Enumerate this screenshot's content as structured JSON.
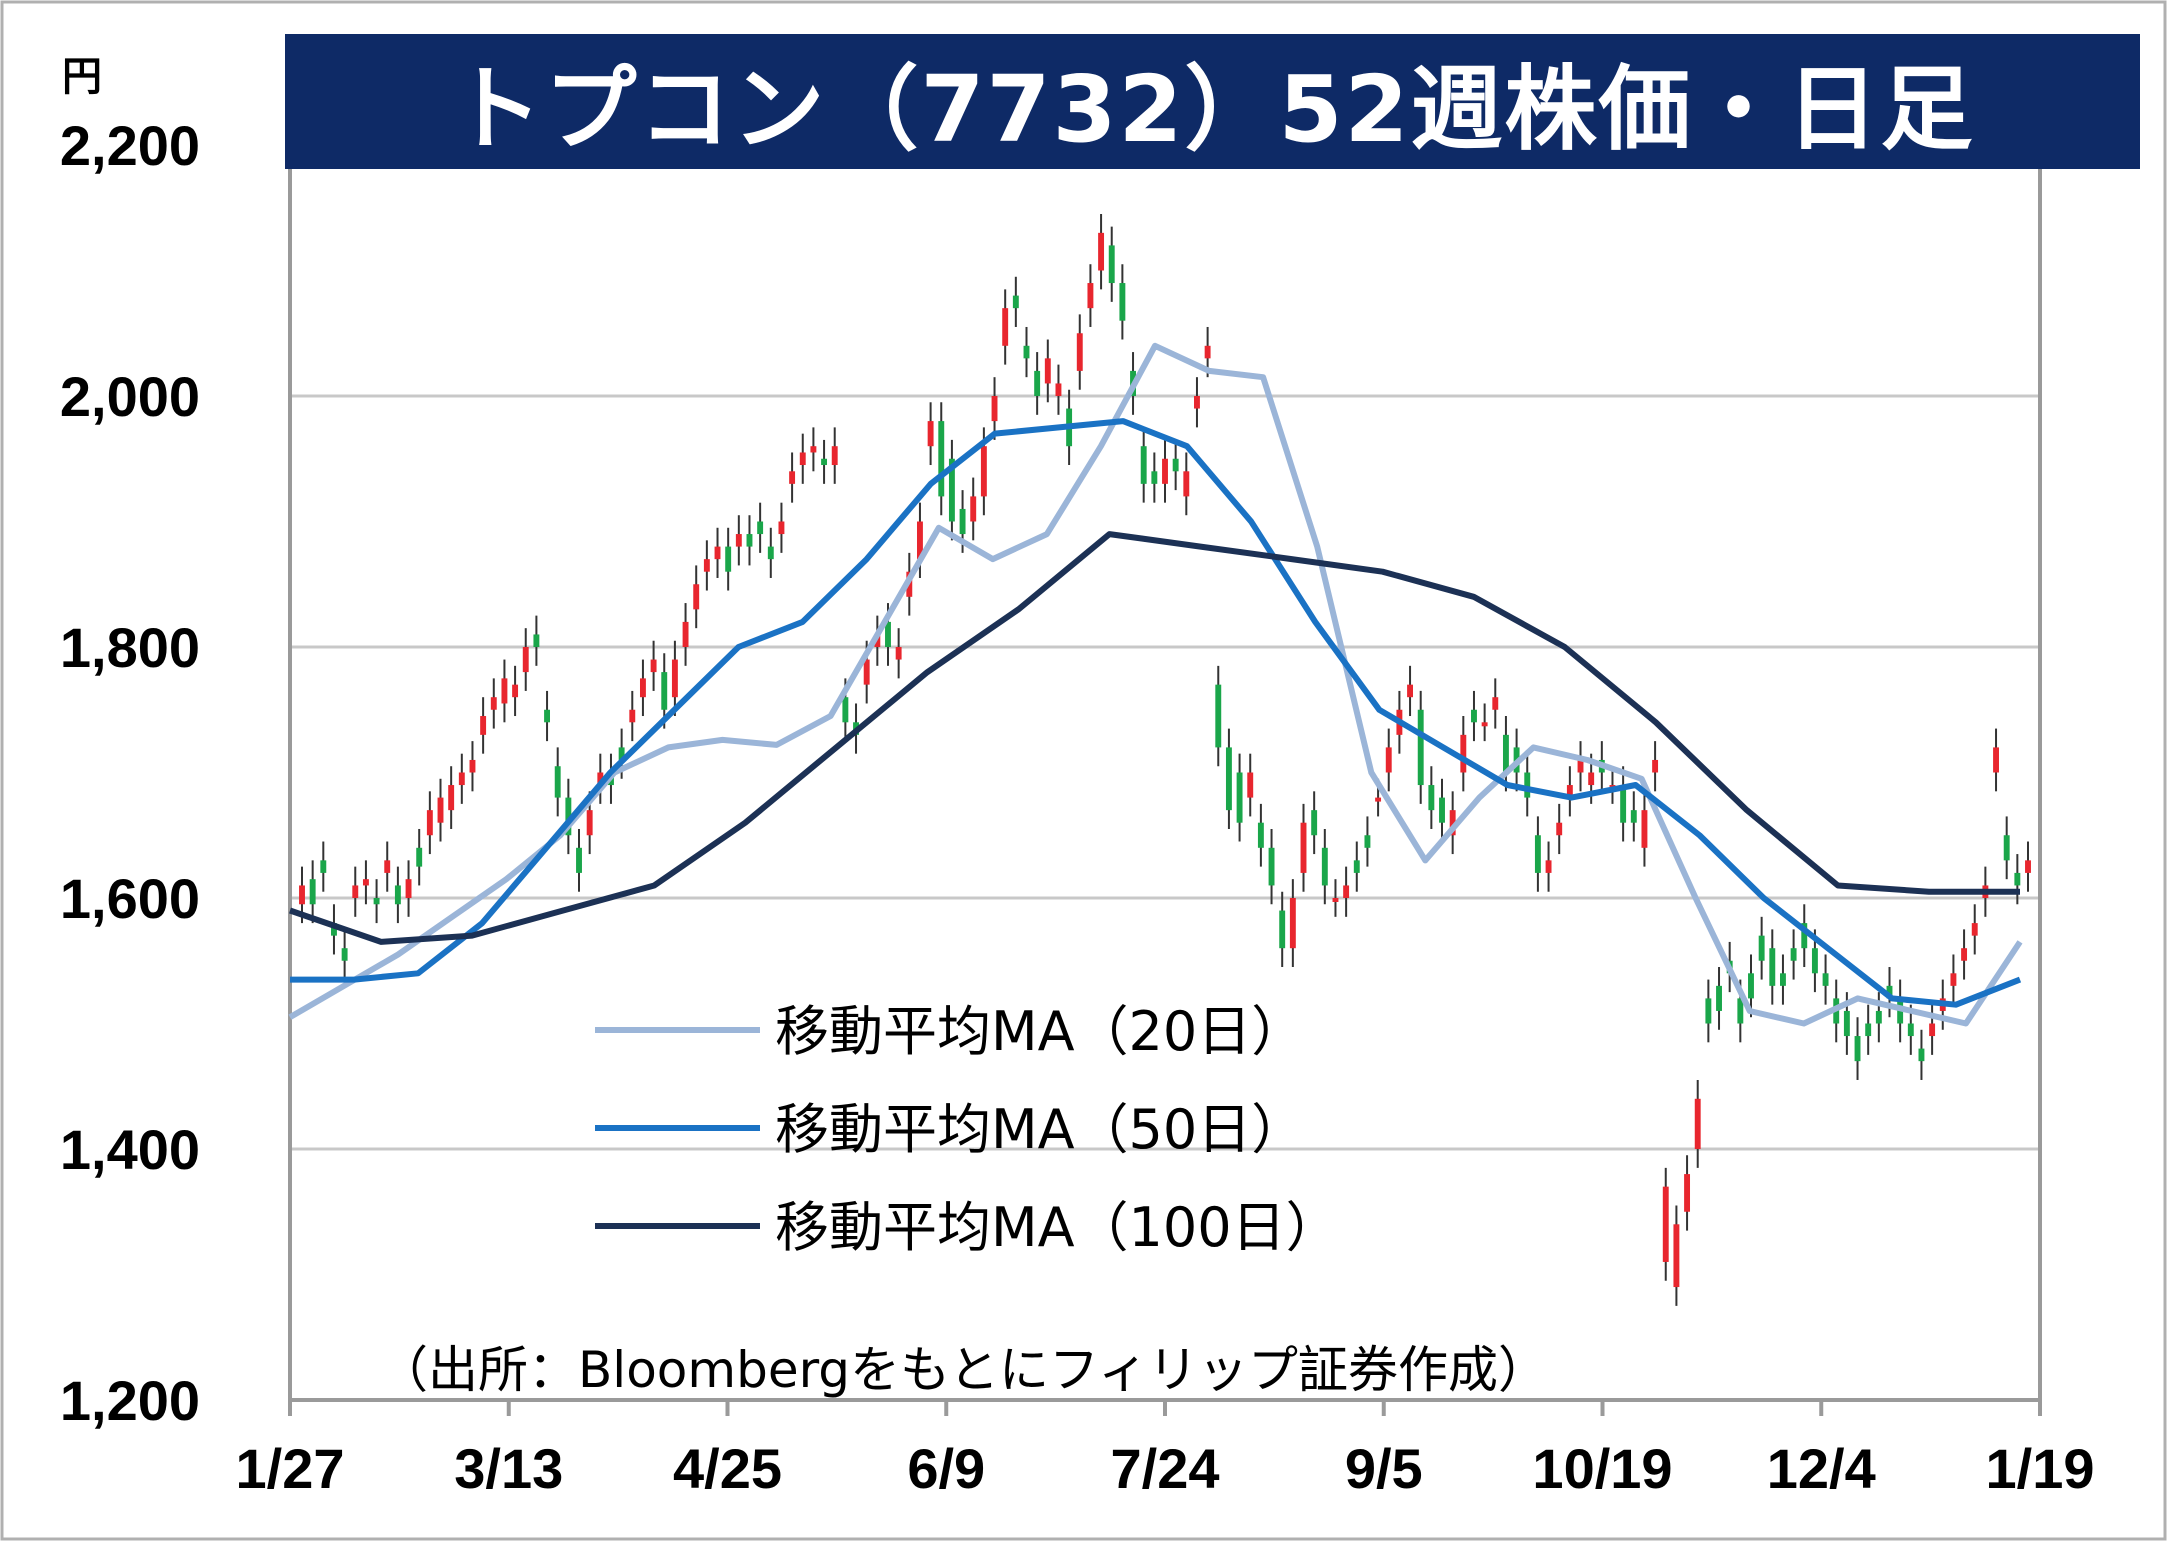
{
  "title": "トプコン（7732）52週株価・日足",
  "unit_label": "円",
  "source": "（出所：Bloombergをもとにフィリップ証券作成）",
  "legend": [
    "移動平均MA（20日）",
    "移動平均MA（50日）",
    "移動平均MA（100日）"
  ],
  "colors": {
    "title_bg": "#0e2a66",
    "up_candle": "#e8262e",
    "down_candle": "#1aa64a",
    "ma20": "#9bb5d8",
    "ma50": "#1a72c4",
    "ma100": "#1c3155",
    "grid": "#c8c8c8",
    "axis": "#9a9a9a"
  },
  "chart_data": {
    "type": "line",
    "title": "トプコン（7732）52週株価・日足",
    "xlabel": "",
    "ylabel": "円",
    "ylim": [
      1200,
      2200
    ],
    "yticks": [
      "1,200",
      "1,400",
      "1,600",
      "1,800",
      "2,000",
      "2,200"
    ],
    "ytick_values": [
      1200,
      1400,
      1600,
      1800,
      2000,
      2200
    ],
    "xticks": [
      "1/27",
      "3/13",
      "4/25",
      "6/9",
      "7/24",
      "9/5",
      "10/19",
      "12/4",
      "1/19"
    ],
    "grid": true,
    "legend_position": "lower-left",
    "candles": [
      [
        1595,
        1610
      ],
      [
        1615,
        1595
      ],
      [
        1630,
        1620
      ],
      [
        1580,
        1570
      ],
      [
        1560,
        1550
      ],
      [
        1600,
        1610
      ],
      [
        1610,
        1615
      ],
      [
        1600,
        1595
      ],
      [
        1620,
        1630
      ],
      [
        1610,
        1595
      ],
      [
        1600,
        1615
      ],
      [
        1640,
        1625
      ],
      [
        1650,
        1670
      ],
      [
        1660,
        1680
      ],
      [
        1670,
        1690
      ],
      [
        1690,
        1700
      ],
      [
        1700,
        1710
      ],
      [
        1730,
        1745
      ],
      [
        1750,
        1760
      ],
      [
        1755,
        1775
      ],
      [
        1760,
        1770
      ],
      [
        1780,
        1800
      ],
      [
        1810,
        1800
      ],
      [
        1750,
        1740
      ],
      [
        1705,
        1680
      ],
      [
        1680,
        1650
      ],
      [
        1640,
        1620
      ],
      [
        1650,
        1670
      ],
      [
        1690,
        1700
      ],
      [
        1700,
        1690
      ],
      [
        1720,
        1710
      ],
      [
        1740,
        1750
      ],
      [
        1760,
        1775
      ],
      [
        1780,
        1790
      ],
      [
        1780,
        1750
      ],
      [
        1760,
        1790
      ],
      [
        1800,
        1820
      ],
      [
        1830,
        1850
      ],
      [
        1860,
        1870
      ],
      [
        1870,
        1880
      ],
      [
        1880,
        1860
      ],
      [
        1880,
        1890
      ],
      [
        1890,
        1880
      ],
      [
        1900,
        1890
      ],
      [
        1880,
        1870
      ],
      [
        1890,
        1900
      ],
      [
        1930,
        1940
      ],
      [
        1945,
        1955
      ],
      [
        1955,
        1960
      ],
      [
        1950,
        1945
      ],
      [
        1945,
        1960
      ],
      [
        1760,
        1740
      ],
      [
        1740,
        1730
      ],
      [
        1770,
        1790
      ],
      [
        1800,
        1810
      ],
      [
        1820,
        1800
      ],
      [
        1790,
        1800
      ],
      [
        1840,
        1860
      ],
      [
        1870,
        1900
      ],
      [
        1960,
        1980
      ],
      [
        1980,
        1920
      ],
      [
        1950,
        1900
      ],
      [
        1910,
        1890
      ],
      [
        1900,
        1920
      ],
      [
        1920,
        1960
      ],
      [
        1980,
        2000
      ],
      [
        2040,
        2070
      ],
      [
        2080,
        2070
      ],
      [
        2040,
        2030
      ],
      [
        2020,
        2000
      ],
      [
        2010,
        2030
      ],
      [
        2000,
        2010
      ],
      [
        1990,
        1960
      ],
      [
        2020,
        2050
      ],
      [
        2070,
        2090
      ],
      [
        2100,
        2130
      ],
      [
        2120,
        2090
      ],
      [
        2090,
        2060
      ],
      [
        2020,
        2000
      ],
      [
        1960,
        1930
      ],
      [
        1940,
        1930
      ],
      [
        1930,
        1950
      ],
      [
        1950,
        1940
      ],
      [
        1920,
        1940
      ],
      [
        1990,
        2000
      ],
      [
        2030,
        2040
      ],
      [
        1770,
        1720
      ],
      [
        1720,
        1670
      ],
      [
        1700,
        1660
      ],
      [
        1680,
        1700
      ],
      [
        1660,
        1640
      ],
      [
        1640,
        1610
      ],
      [
        1590,
        1560
      ],
      [
        1560,
        1600
      ],
      [
        1620,
        1660
      ],
      [
        1670,
        1650
      ],
      [
        1640,
        1610
      ],
      [
        1600,
        1600
      ],
      [
        1600,
        1610
      ],
      [
        1630,
        1620
      ],
      [
        1650,
        1640
      ],
      [
        1680,
        1680
      ],
      [
        1700,
        1720
      ],
      [
        1730,
        1750
      ],
      [
        1760,
        1770
      ],
      [
        1750,
        1690
      ],
      [
        1690,
        1670
      ],
      [
        1680,
        1660
      ],
      [
        1650,
        1670
      ],
      [
        1700,
        1730
      ],
      [
        1750,
        1740
      ],
      [
        1740,
        1740
      ],
      [
        1750,
        1760
      ],
      [
        1730,
        1700
      ],
      [
        1720,
        1700
      ],
      [
        1700,
        1680
      ],
      [
        1650,
        1620
      ],
      [
        1620,
        1630
      ],
      [
        1650,
        1660
      ],
      [
        1680,
        1690
      ],
      [
        1700,
        1710
      ],
      [
        1690,
        1700
      ],
      [
        1710,
        1700
      ],
      [
        1690,
        1690
      ],
      [
        1690,
        1660
      ],
      [
        1670,
        1660
      ],
      [
        1640,
        1670
      ],
      [
        1700,
        1710
      ],
      [
        1310,
        1370
      ],
      [
        1290,
        1340
      ],
      [
        1350,
        1380
      ],
      [
        1400,
        1440
      ],
      [
        1520,
        1500
      ],
      [
        1530,
        1510
      ],
      [
        1550,
        1540
      ],
      [
        1520,
        1500
      ],
      [
        1540,
        1520
      ],
      [
        1570,
        1550
      ],
      [
        1560,
        1530
      ],
      [
        1540,
        1530
      ],
      [
        1560,
        1550
      ],
      [
        1580,
        1560
      ],
      [
        1560,
        1540
      ],
      [
        1540,
        1530
      ],
      [
        1520,
        1500
      ],
      [
        1510,
        1490
      ],
      [
        1490,
        1470
      ],
      [
        1500,
        1490
      ],
      [
        1510,
        1500
      ],
      [
        1530,
        1520
      ],
      [
        1520,
        1500
      ],
      [
        1500,
        1490
      ],
      [
        1480,
        1470
      ],
      [
        1490,
        1500
      ],
      [
        1510,
        1520
      ],
      [
        1530,
        1540
      ],
      [
        1550,
        1560
      ],
      [
        1570,
        1580
      ],
      [
        1600,
        1610
      ],
      [
        1700,
        1720
      ],
      [
        1650,
        1630
      ],
      [
        1620,
        1610
      ],
      [
        1620,
        1630
      ]
    ],
    "series": [
      {
        "name": "移動平均MA（20日）",
        "values": [
          1505,
          1530,
          1555,
          1585,
          1615,
          1650,
          1700,
          1720,
          1726,
          1722,
          1745,
          1820,
          1895,
          1870,
          1890,
          1960,
          2040,
          2020,
          2015,
          1880,
          1700,
          1630,
          1680,
          1720,
          1710,
          1695,
          1600,
          1510,
          1500,
          1520,
          1510,
          1500,
          1565
        ]
      },
      {
        "name": "移動平均MA（50日）",
        "values": [
          1535,
          1535,
          1540,
          1580,
          1640,
          1700,
          1750,
          1800,
          1820,
          1870,
          1930,
          1970,
          1975,
          1980,
          1960,
          1900,
          1820,
          1750,
          1720,
          1690,
          1680,
          1690,
          1650,
          1600,
          1560,
          1520,
          1515,
          1535
        ]
      },
      {
        "name": "移動平均MA（100日）",
        "values": [
          1590,
          1565,
          1570,
          1590,
          1610,
          1660,
          1720,
          1780,
          1830,
          1890,
          1880,
          1870,
          1860,
          1840,
          1800,
          1740,
          1670,
          1610,
          1605,
          1605
        ]
      }
    ]
  }
}
